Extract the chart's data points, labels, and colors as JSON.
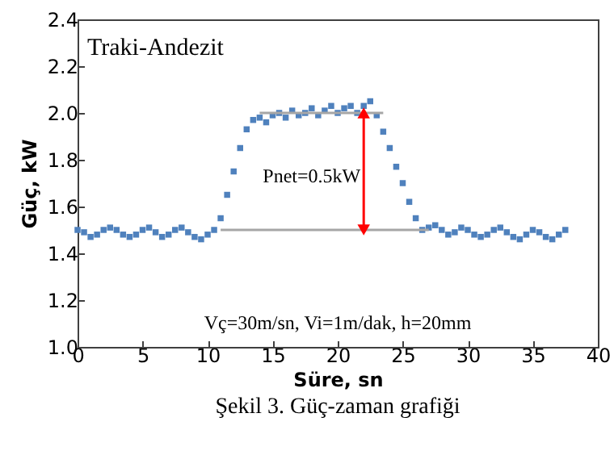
{
  "chart_data": {
    "type": "scatter",
    "title": "Şekil 3. Güç-zaman grafiği",
    "xlabel": "Süre, sn",
    "ylabel": "Güç, kW",
    "annotations": [
      "Traki-Andezit",
      "Vç=30m/sn, Vi=1m/dak, h=20mm",
      {
        "text": "Pnet=0.5kW",
        "x": 22,
        "y": 1.73
      }
    ],
    "xlim": [
      0,
      40
    ],
    "xticks": [
      0,
      5,
      10,
      15,
      20,
      25,
      30,
      35,
      40
    ],
    "ylim": [
      1.0,
      2.4
    ],
    "yticks": [
      {
        "value": 1.0,
        "label": "1.0"
      },
      {
        "value": 1.2,
        "label": "1.2"
      },
      {
        "value": 1.4,
        "label": "1.4"
      },
      {
        "value": 1.6,
        "label": "1.6"
      },
      {
        "value": 1.8,
        "label": "1.8"
      },
      {
        "value": 2.0,
        "label": "2.0"
      },
      {
        "value": 2.2,
        "label": "2.2"
      },
      {
        "value": 2.4,
        "label": "2.4"
      }
    ],
    "marker": "square",
    "series": [
      {
        "color": "#4f81bd",
        "x": [
          0,
          0.5,
          1,
          1.5,
          2,
          2.5,
          3,
          3.5,
          4,
          4.5,
          5,
          5.5,
          6,
          6.5,
          7,
          7.5,
          8,
          8.5,
          9,
          9.5,
          10,
          10.5,
          11,
          11.5,
          12,
          12.5,
          13,
          13.5,
          14,
          14.5,
          15,
          15.5,
          16,
          16.5,
          17,
          17.5,
          18,
          18.5,
          19,
          19.5,
          20,
          20.5,
          21,
          21.5,
          22,
          22.5,
          23,
          23.5,
          24,
          24.5,
          25,
          25.5,
          26,
          26.5,
          27,
          27.5,
          28,
          28.5,
          29,
          29.5,
          30,
          30.5,
          31,
          31.5,
          32,
          32.5,
          33,
          33.5,
          34,
          34.5,
          35,
          35.5,
          36,
          36.5,
          37,
          37.5
        ],
        "values": [
          1.5,
          1.49,
          1.47,
          1.48,
          1.5,
          1.51,
          1.5,
          1.48,
          1.47,
          1.48,
          1.5,
          1.51,
          1.49,
          1.47,
          1.48,
          1.5,
          1.51,
          1.49,
          1.47,
          1.46,
          1.48,
          1.5,
          1.55,
          1.65,
          1.75,
          1.85,
          1.93,
          1.97,
          1.98,
          1.96,
          1.99,
          2.0,
          1.98,
          2.01,
          1.99,
          2.0,
          2.02,
          1.99,
          2.01,
          2.03,
          2.0,
          2.02,
          2.03,
          2.0,
          2.03,
          2.05,
          1.99,
          1.92,
          1.85,
          1.77,
          1.7,
          1.62,
          1.55,
          1.5,
          1.51,
          1.52,
          1.5,
          1.48,
          1.49,
          1.51,
          1.5,
          1.48,
          1.47,
          1.48,
          1.5,
          1.51,
          1.49,
          1.47,
          1.46,
          1.48,
          1.5,
          1.49,
          1.47,
          1.46,
          1.48,
          1.5
        ]
      },
      {
        "type": "line",
        "color": "#a6a6a6",
        "marker": "none",
        "x": [
          14,
          23.5
        ],
        "values": [
          2.0,
          2.0
        ]
      },
      {
        "type": "line",
        "color": "#a6a6a6",
        "marker": "none",
        "x": [
          11,
          27
        ],
        "values": [
          1.5,
          1.5
        ]
      },
      {
        "type": "line",
        "color": "#ff0000",
        "marker": "triangle",
        "x": [
          22,
          22
        ],
        "values": [
          1.5,
          2.0
        ]
      }
    ]
  }
}
